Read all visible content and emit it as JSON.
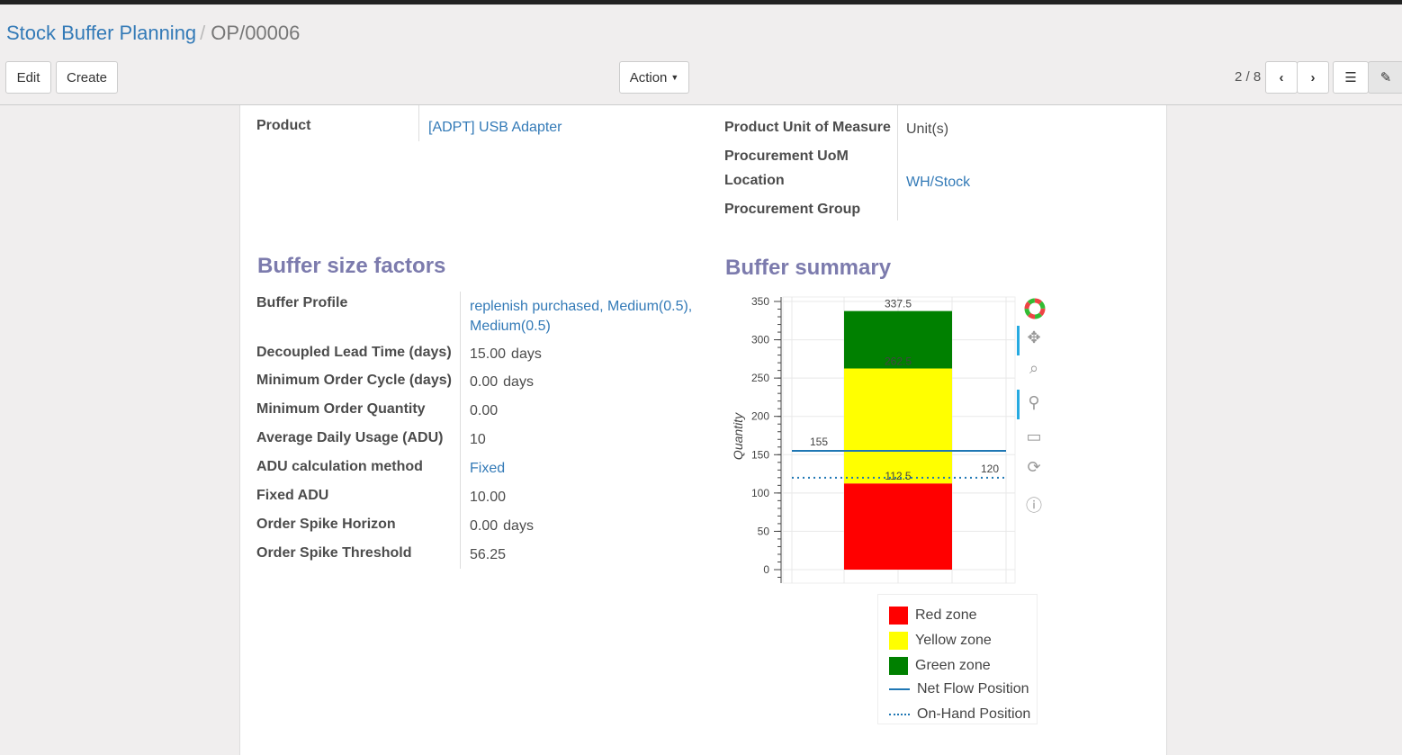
{
  "breadcrumb": {
    "parent": "Stock Buffer Planning",
    "current": "OP/00006"
  },
  "buttons": {
    "edit": "Edit",
    "create": "Create",
    "action": "Action"
  },
  "pager": {
    "value": "2 / 8"
  },
  "fields": {
    "product_label": "Product",
    "product_value": "[ADPT] USB Adapter",
    "uom_label": "Product Unit of Measure",
    "uom_value": "Unit(s)",
    "proc_uom_label": "Procurement UoM",
    "location_label": "Location",
    "location_value": "WH/Stock",
    "proc_group_label": "Procurement Group"
  },
  "factors": {
    "title": "Buffer size factors",
    "rows": [
      {
        "label": "Buffer Profile",
        "value": "replenish purchased, Medium(0.5), Medium(0.5)",
        "link": true
      },
      {
        "label": "Decoupled Lead Time (days)",
        "value": "15.00",
        "unit": "days"
      },
      {
        "label": "Minimum Order Cycle (days)",
        "value": "0.00",
        "unit": "days"
      },
      {
        "label": "Minimum Order Quantity",
        "value": "0.00"
      },
      {
        "label": "Average Daily Usage (ADU)",
        "value": "10"
      },
      {
        "label": "ADU calculation method",
        "value": "Fixed",
        "link": true
      },
      {
        "label": "Fixed ADU",
        "value": "10.00"
      },
      {
        "label": "Order Spike Horizon",
        "value": "0.00",
        "unit": "days"
      },
      {
        "label": "Order Spike Threshold",
        "value": "56.25"
      }
    ]
  },
  "summary": {
    "title": "Buffer summary"
  },
  "chart_data": {
    "type": "bar",
    "ylabel": "Quantity",
    "ylim": [
      0,
      350
    ],
    "yticks": [
      0,
      50,
      100,
      150,
      200,
      250,
      300,
      350
    ],
    "stack": [
      {
        "name": "Red zone",
        "from": 0,
        "to": 112.5,
        "color": "#ff0000",
        "label": "112.5"
      },
      {
        "name": "Yellow zone",
        "from": 112.5,
        "to": 262.5,
        "color": "#ffff00",
        "label": "262.5"
      },
      {
        "name": "Green zone",
        "from": 262.5,
        "to": 337.5,
        "color": "#008000",
        "label": "337.5"
      }
    ],
    "lines": [
      {
        "name": "Net Flow Position",
        "value": 155,
        "label": "155",
        "style": "solid",
        "color": "#1f77b4"
      },
      {
        "name": "On-Hand Position",
        "value": 120,
        "label": "120",
        "style": "dotted",
        "color": "#1f77b4"
      }
    ],
    "grid": true,
    "legend": "bottom"
  }
}
